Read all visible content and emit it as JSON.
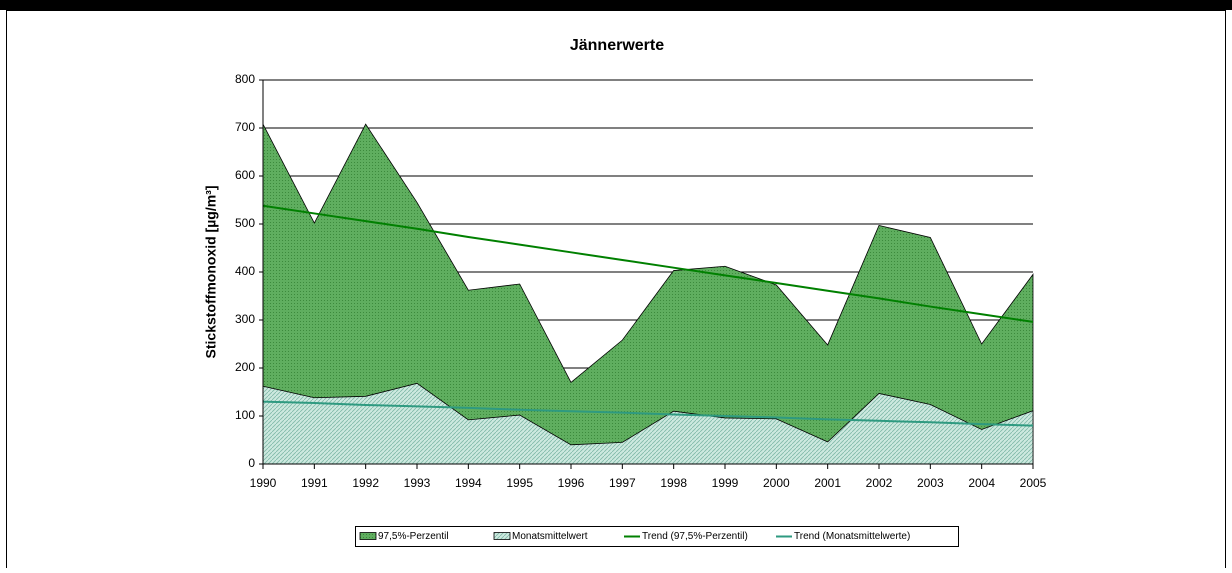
{
  "chart_data": {
    "type": "area",
    "title": "Jännerwerte",
    "y_label": "Stickstoffmonoxid [µg/m³]",
    "categories": [
      "1990",
      "1991",
      "1992",
      "1993",
      "1994",
      "1995",
      "1996",
      "1997",
      "1998",
      "1999",
      "2000",
      "2001",
      "2002",
      "2003",
      "2004",
      "2005"
    ],
    "ylim": [
      0,
      800
    ],
    "yticks": [
      0,
      100,
      200,
      300,
      400,
      500,
      600,
      700,
      800
    ],
    "grid": true,
    "legend": "bottom",
    "series": [
      {
        "name": "97,5%-Perzentil",
        "kind": "area",
        "color": "#5fae5f",
        "values": [
          708,
          502,
          708,
          545,
          362,
          375,
          170,
          258,
          403,
          412,
          373,
          248,
          497,
          472,
          250,
          395
        ]
      },
      {
        "name": "Monatsmittelwert",
        "kind": "area",
        "color": "#cde9df",
        "values": [
          162,
          138,
          141,
          168,
          92,
          102,
          40,
          45,
          110,
          96,
          94,
          46,
          147,
          124,
          72,
          111
        ]
      },
      {
        "name": "Trend (97,5%-Perzentil)",
        "kind": "line",
        "color": "#008000",
        "values": [
          538,
          522,
          506,
          490,
          473,
          457,
          441,
          425,
          409,
          393,
          377,
          361,
          345,
          328,
          312,
          296
        ]
      },
      {
        "name": "Trend (Monatsmittelwerte)",
        "kind": "line",
        "color": "#2e9a80",
        "values": [
          130,
          127,
          123,
          120,
          117,
          113,
          110,
          107,
          103,
          100,
          97,
          93,
          90,
          87,
          83,
          80
        ]
      }
    ]
  }
}
